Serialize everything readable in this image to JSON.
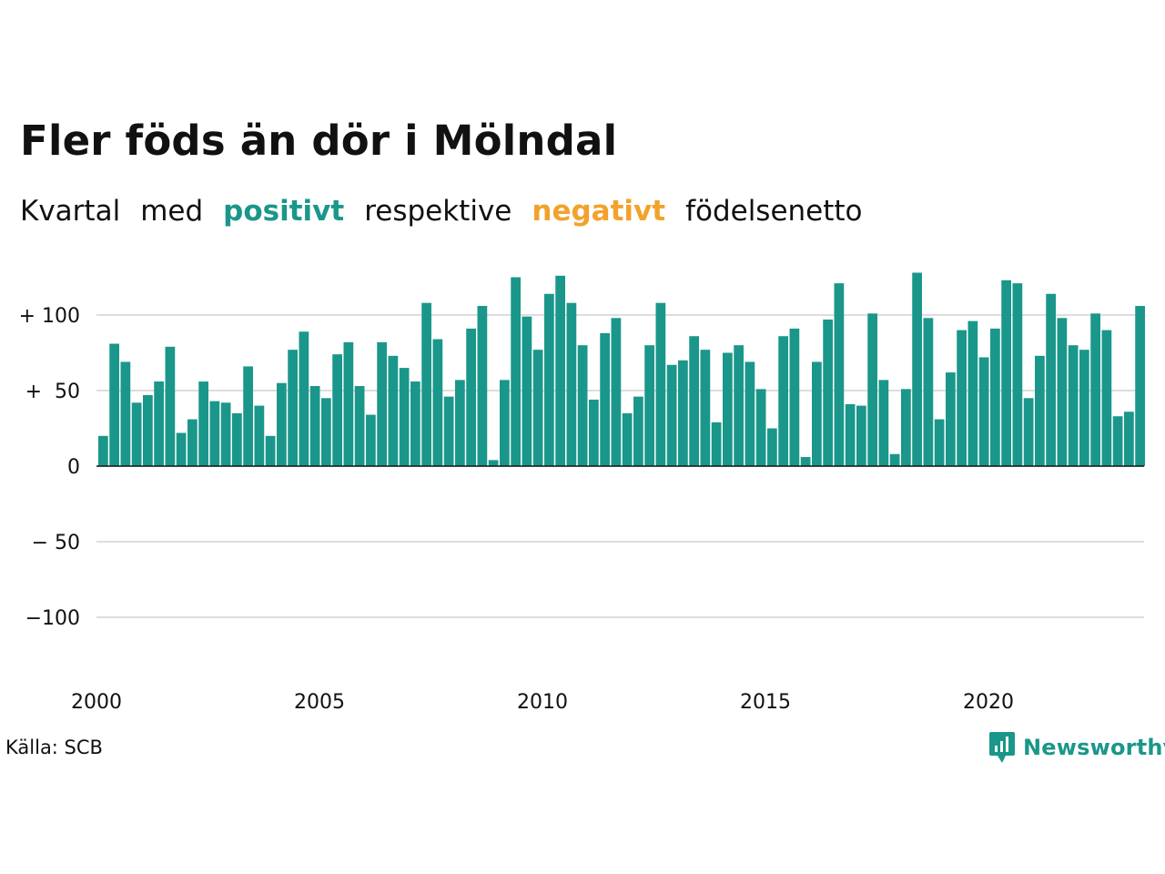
{
  "chart_data": {
    "type": "bar",
    "title": "Fler föds än dör i Mölndal",
    "subtitle": [
      "Kvartal",
      "med",
      "positivt",
      "respektive",
      "negativt",
      "födelsenetto"
    ],
    "x_start": "2000-Q1",
    "x_ticks": [
      2000,
      2005,
      2010,
      2015,
      2020
    ],
    "y_ticks": [
      100,
      50,
      0,
      -50,
      -100
    ],
    "y_tick_labels": [
      "+ 100",
      "+  50",
      "0",
      "− 50",
      "−100"
    ],
    "ylim": [
      -140,
      140
    ],
    "grid": true,
    "values": [
      20,
      81,
      69,
      42,
      47,
      56,
      79,
      22,
      31,
      56,
      43,
      42,
      35,
      66,
      40,
      20,
      55,
      77,
      89,
      53,
      45,
      74,
      82,
      53,
      34,
      82,
      73,
      65,
      56,
      108,
      84,
      46,
      57,
      91,
      106,
      4,
      57,
      125,
      99,
      77,
      114,
      126,
      108,
      80,
      44,
      88,
      98,
      35,
      46,
      80,
      108,
      67,
      70,
      86,
      77,
      29,
      75,
      80,
      69,
      51,
      25,
      86,
      91,
      6,
      69,
      97,
      121,
      41,
      40,
      101,
      57,
      8,
      51,
      128,
      98,
      31,
      62,
      90,
      96,
      72,
      91,
      123,
      121,
      45,
      73,
      114,
      98,
      80,
      77,
      101,
      90,
      33,
      36,
      106
    ],
    "colors": {
      "positive": "#1a978a",
      "negative": "#f2a22c"
    },
    "source": "Källa: SCB",
    "logo": "Newsworthy"
  }
}
